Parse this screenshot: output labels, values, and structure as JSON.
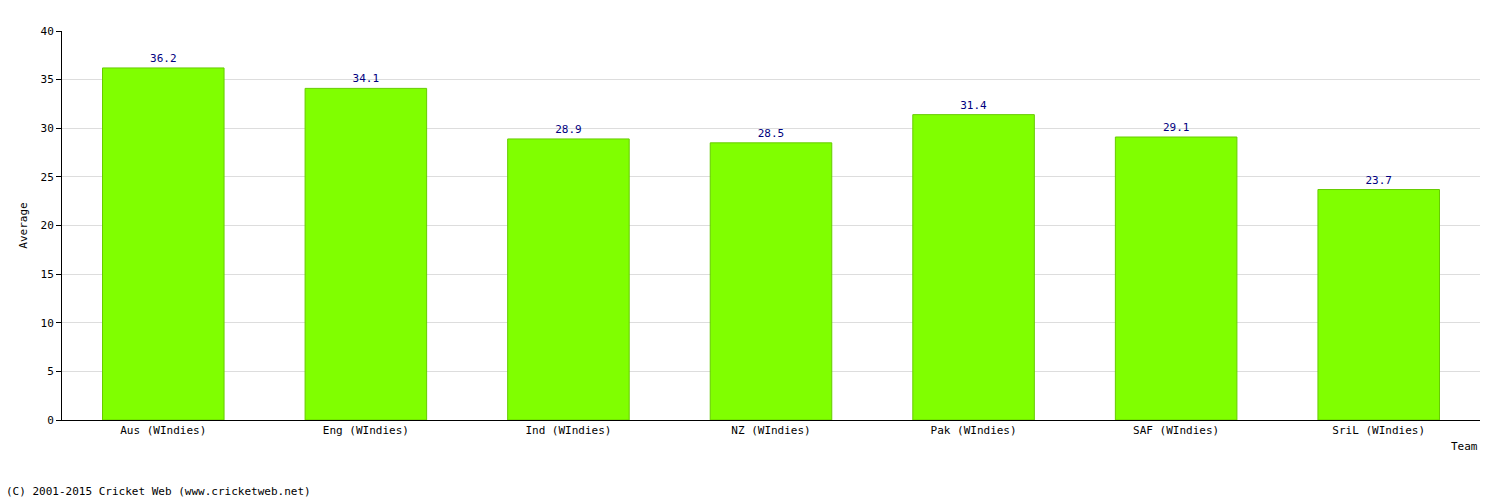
{
  "chart_data": {
    "type": "bar",
    "categories": [
      "Aus (WIndies)",
      "Eng (WIndies)",
      "Ind (WIndies)",
      "NZ (WIndies)",
      "Pak (WIndies)",
      "SAF (WIndies)",
      "SriL (WIndies)"
    ],
    "values": [
      36.2,
      34.1,
      28.9,
      28.5,
      31.4,
      29.1,
      23.7
    ],
    "color": "#80ff00",
    "x_label": "Team",
    "y_label": "Average",
    "ylim": [
      0,
      40
    ],
    "yticks": [
      0,
      5,
      10,
      15,
      20,
      25,
      30,
      35,
      40
    ],
    "grid": true,
    "data_labels": true,
    "annotations": [
      "(C) 2001-2015 Cricket Web (www.cricketweb.net)"
    ]
  }
}
